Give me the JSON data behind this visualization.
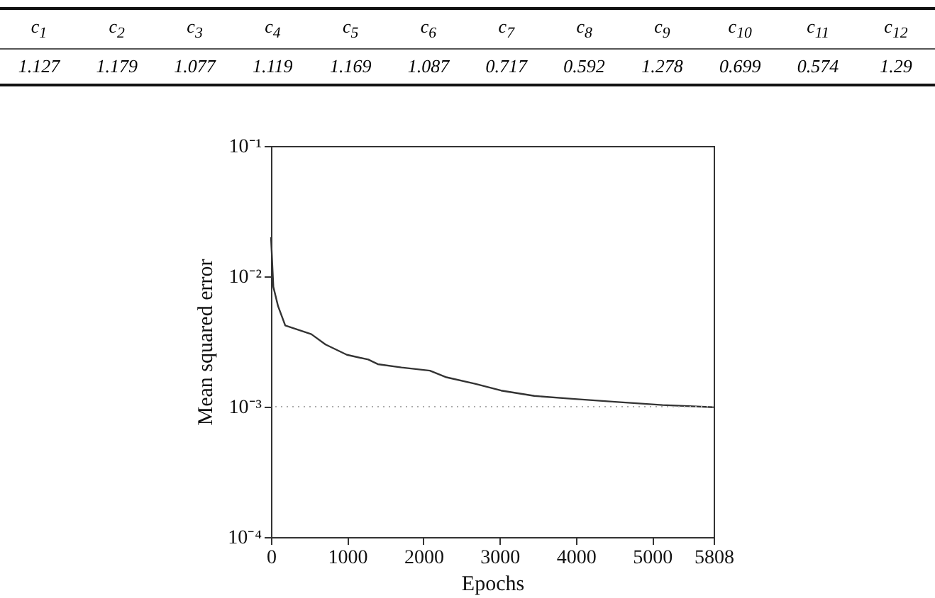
{
  "chart_data": {
    "type": "line",
    "xlabel": "Epochs",
    "ylabel": "Mean squared error",
    "log": true,
    "grid": false,
    "xlim": [
      0,
      5808
    ],
    "xticks": [
      0,
      1000,
      2000,
      3000,
      4000,
      5000,
      5808
    ],
    "ylim": [
      0.0001,
      0.1
    ],
    "yticks": [
      {
        "value": 0.0001,
        "label": "10⁻⁴"
      },
      {
        "value": 0.001,
        "label": "10⁻³"
      },
      {
        "value": 0.01,
        "label": "10⁻²"
      },
      {
        "value": 0.1,
        "label": "10⁻¹"
      }
    ],
    "x": [
      0,
      31,
      93,
      187,
      529,
      716,
      996,
      1276,
      1401,
      1712,
      2085,
      2303,
      2677,
      3019,
      3455,
      3953,
      4513,
      5136,
      5808
    ],
    "series": [
      {
        "color": "#333333",
        "values": [
          0.02,
          0.0083,
          0.0059,
          0.0042,
          0.0036,
          0.003,
          0.0025,
          0.0023,
          0.00212,
          0.002,
          0.00189,
          0.00168,
          0.0015,
          0.00133,
          0.00121,
          0.00115,
          0.00109,
          0.00103,
          0.00099
        ]
      }
    ],
    "ref_lines": [
      {
        "axis": "y",
        "value": 0.001,
        "color": "#aaaaaa",
        "line_style": "dotted"
      }
    ],
    "annotations": [
      "c$_{1}$",
      "c$_{2}$",
      "c$_{3}$",
      "c$_{4}$",
      "c$_{5}$",
      "c$_{6}$",
      "c$_{7}$",
      "c$_{8}$",
      "c$_{9}$",
      "c$_{10}$",
      "c$_{11}$",
      "c$_{12}$",
      "1.127",
      "1.179",
      "1.077",
      "1.119",
      "1.169",
      "1.087",
      "0.717",
      "0.592",
      "1.278",
      "0.699",
      "0.574",
      "1.29"
    ]
  }
}
